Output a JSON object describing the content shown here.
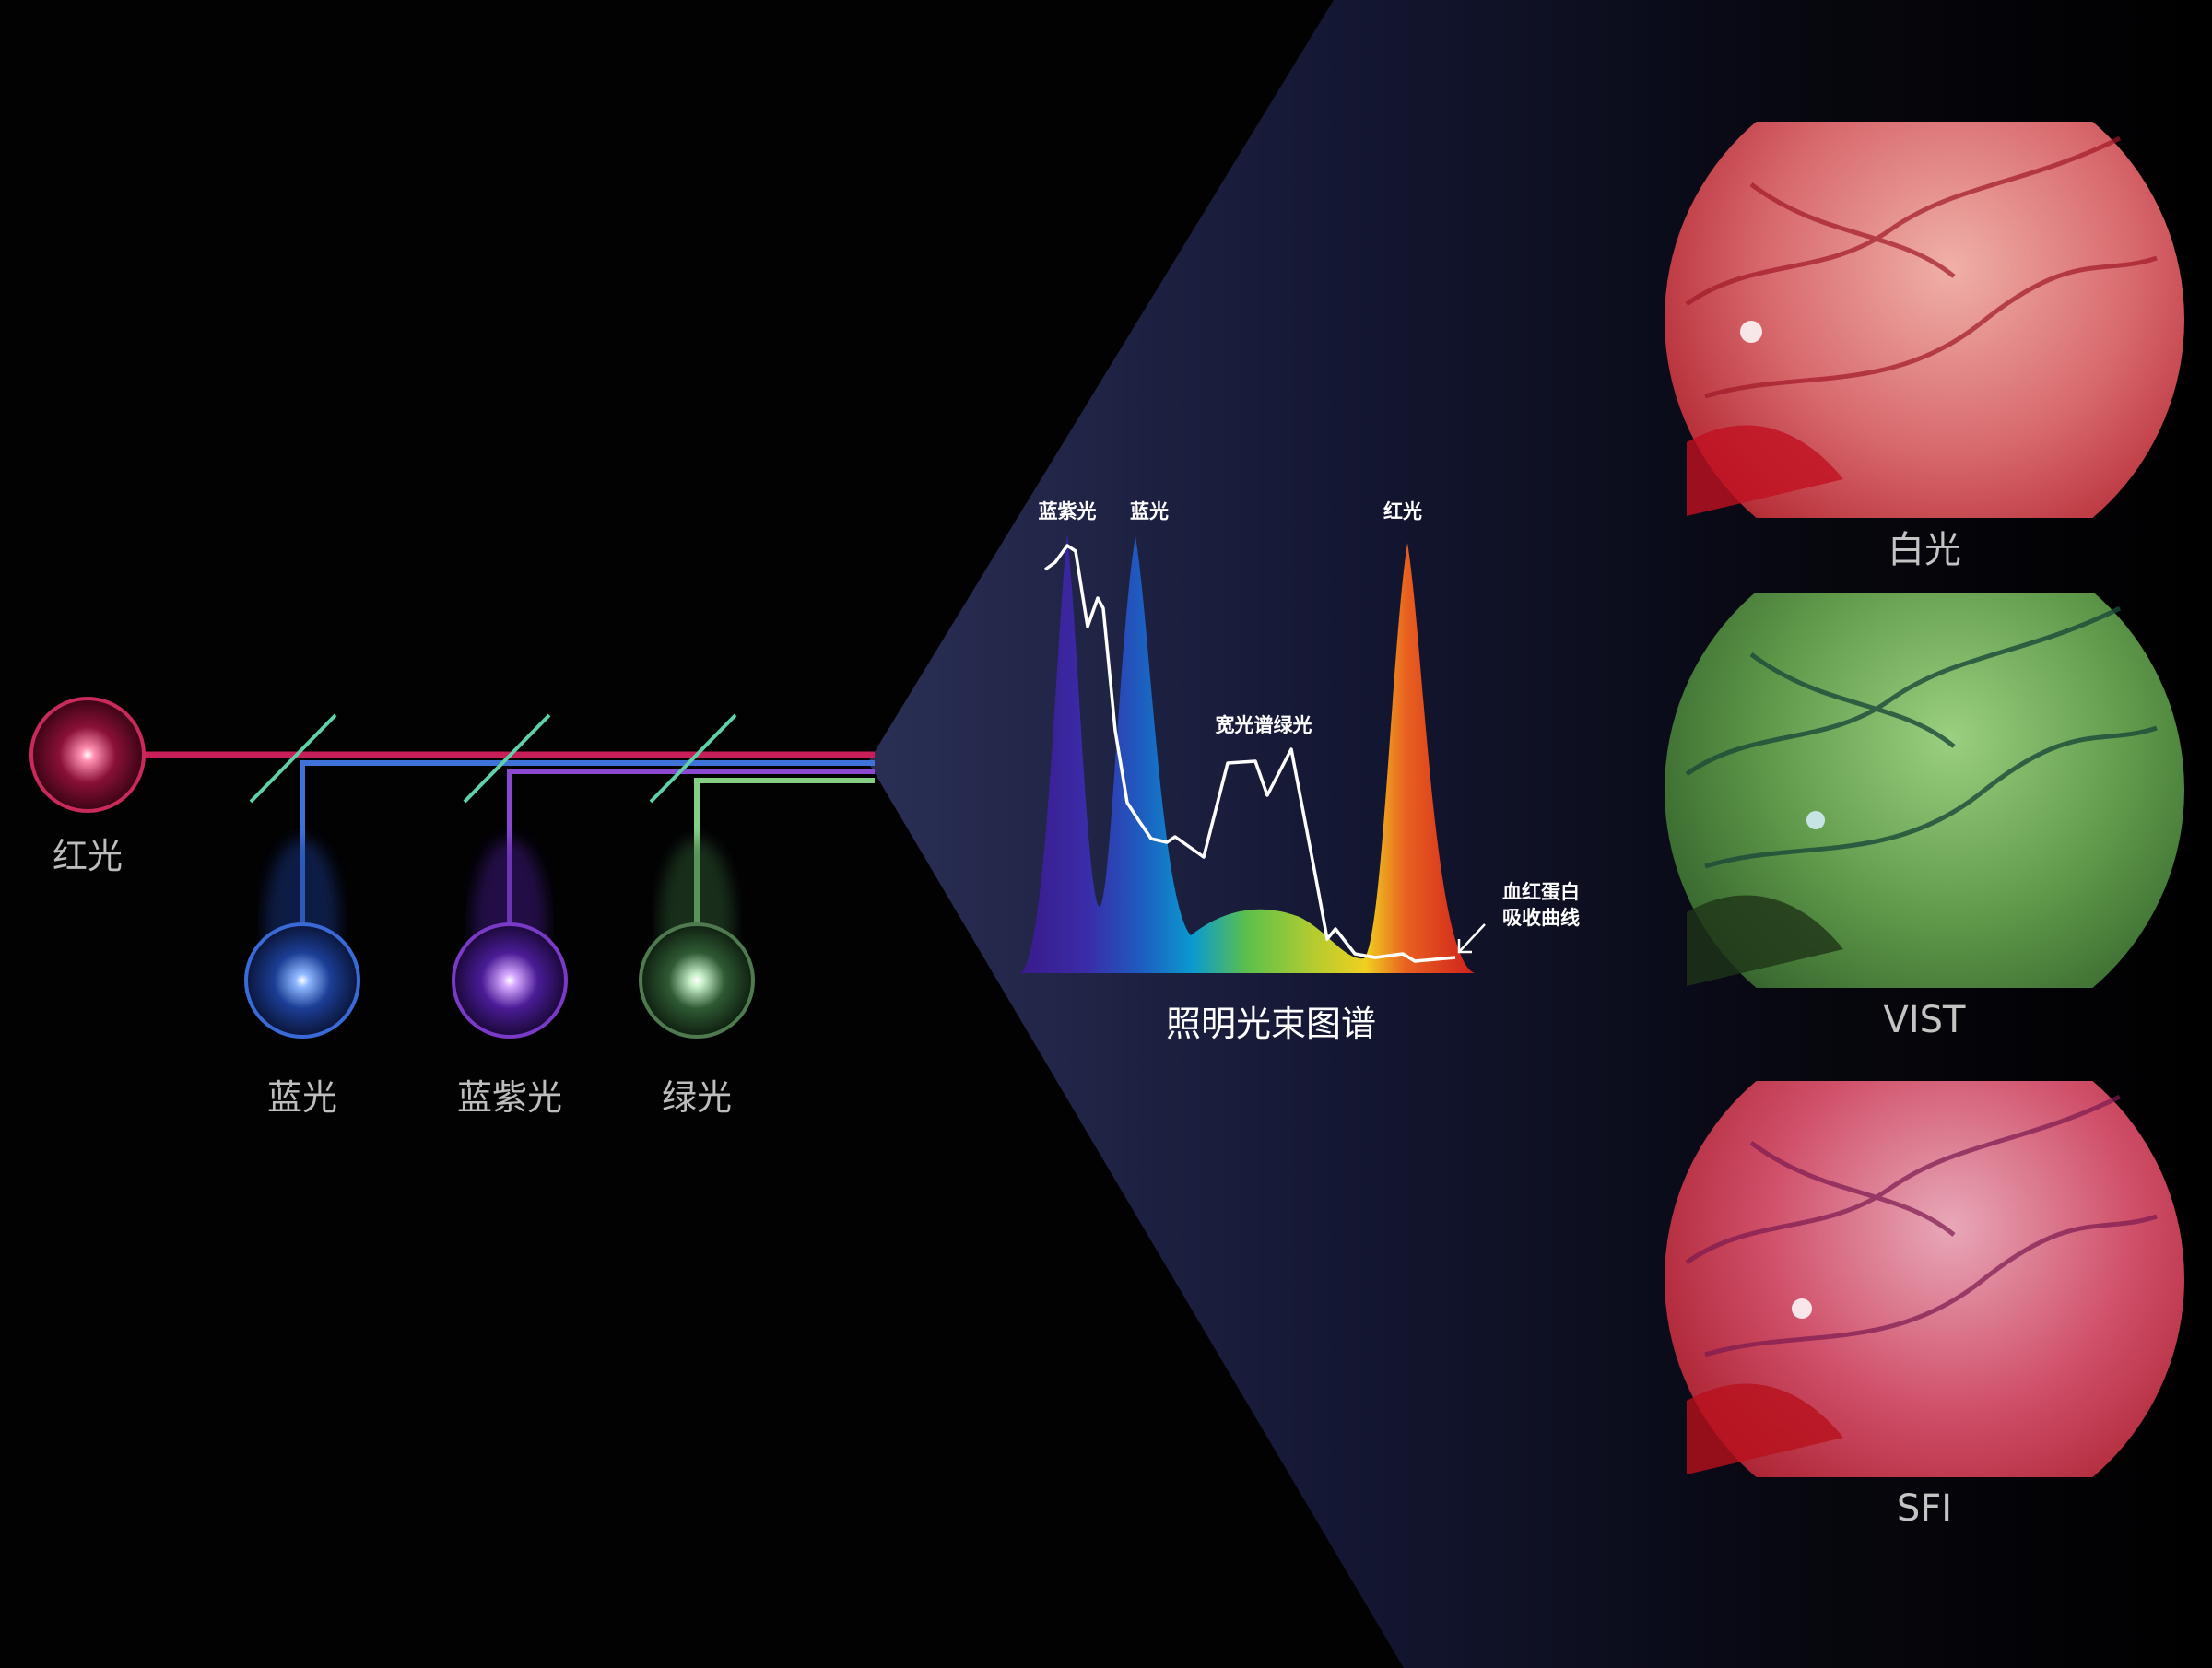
{
  "sources": [
    {
      "label": "红光",
      "color": "#d0205a"
    },
    {
      "label": "蓝光",
      "color": "#3d6fd8"
    },
    {
      "label": "蓝紫光",
      "color": "#8a4ad0"
    },
    {
      "label": "绿光",
      "color": "#7fcf7f"
    }
  ],
  "mirror_color": "#5fd0a8",
  "spectrum": {
    "title": "照明光束图谱",
    "peak_labels": [
      "蓝紫光",
      "蓝光",
      "宽光谱绿光",
      "红光"
    ],
    "absorption_label": [
      "血红蛋白",
      "吸收曲线"
    ]
  },
  "modes": [
    {
      "label": "白光",
      "tint": "#d85a5e"
    },
    {
      "label": "VIST",
      "tint": "#5f9a4a"
    },
    {
      "label": "SFI",
      "tint": "#d0506a"
    }
  ]
}
